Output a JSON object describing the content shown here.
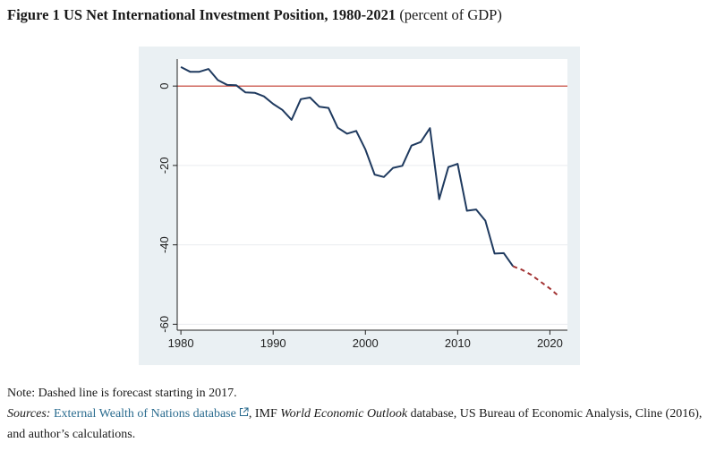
{
  "title": {
    "bold": "Figure 1 US Net International Investment Position, 1980-2021",
    "rest": "(percent of GDP)"
  },
  "notes": {
    "note": "Note: Dashed line is forecast starting in 2017.",
    "sources_label": "Sources:",
    "link_text": "External Wealth of Nations database",
    "link_icon": "external-link-icon",
    "text_a": ", IMF ",
    "italic": "World Economic Outlook",
    "text_b": " database, US Bureau of Economic Analysis, Cline (2016), and author’s calculations."
  },
  "colors": {
    "chart_background": "#eaf0f3",
    "actual_line": "#1f3a5f",
    "forecast_line": "#a23232",
    "zero_line": "#c0392b",
    "link": "#2b6c8f"
  },
  "chart_data": {
    "type": "line",
    "title": "",
    "xlabel": "",
    "ylabel": "",
    "xlim": [
      1979.6,
      2021.9
    ],
    "ylim": [
      -61.5,
      6.8
    ],
    "x_ticks": [
      1980,
      1990,
      2000,
      2010,
      2020
    ],
    "x_tick_labels": [
      "1980",
      "1990",
      "2000",
      "2010",
      "2020"
    ],
    "y_ticks": [
      0,
      -20,
      -40,
      -60
    ],
    "y_tick_labels": [
      "0",
      "-20",
      "-40",
      "-60"
    ],
    "grid": "horizontal",
    "reference_line": {
      "y": 0
    },
    "series": [
      {
        "style": "solid",
        "x": [
          1980,
          1981,
          1982,
          1983,
          1984,
          1985,
          1986,
          1987,
          1988,
          1989,
          1990,
          1991,
          1992,
          1993,
          1994,
          1995,
          1996,
          1997,
          1998,
          1999,
          2000,
          2001,
          2002,
          2003,
          2004,
          2005,
          2006,
          2007,
          2008,
          2009,
          2010,
          2011,
          2012,
          2013,
          2014,
          2015,
          2016
        ],
        "y": [
          4.8,
          3.6,
          3.6,
          4.3,
          1.5,
          0.3,
          0.2,
          -1.6,
          -1.7,
          -2.6,
          -4.5,
          -6.0,
          -8.5,
          -3.3,
          -2.9,
          -5.2,
          -5.5,
          -10.5,
          -12.0,
          -11.3,
          -16.0,
          -22.3,
          -22.9,
          -20.6,
          -20.1,
          -15.0,
          -14.1,
          -10.6,
          -28.5,
          -20.4,
          -19.6,
          -31.4,
          -31.1,
          -33.9,
          -42.2,
          -42.1,
          -45.4
        ]
      },
      {
        "style": "dashed",
        "x": [
          2016,
          2017,
          2018,
          2019,
          2020,
          2021
        ],
        "y": [
          -45.4,
          -46.3,
          -47.6,
          -49.3,
          -51.0,
          -53.0
        ]
      }
    ]
  }
}
